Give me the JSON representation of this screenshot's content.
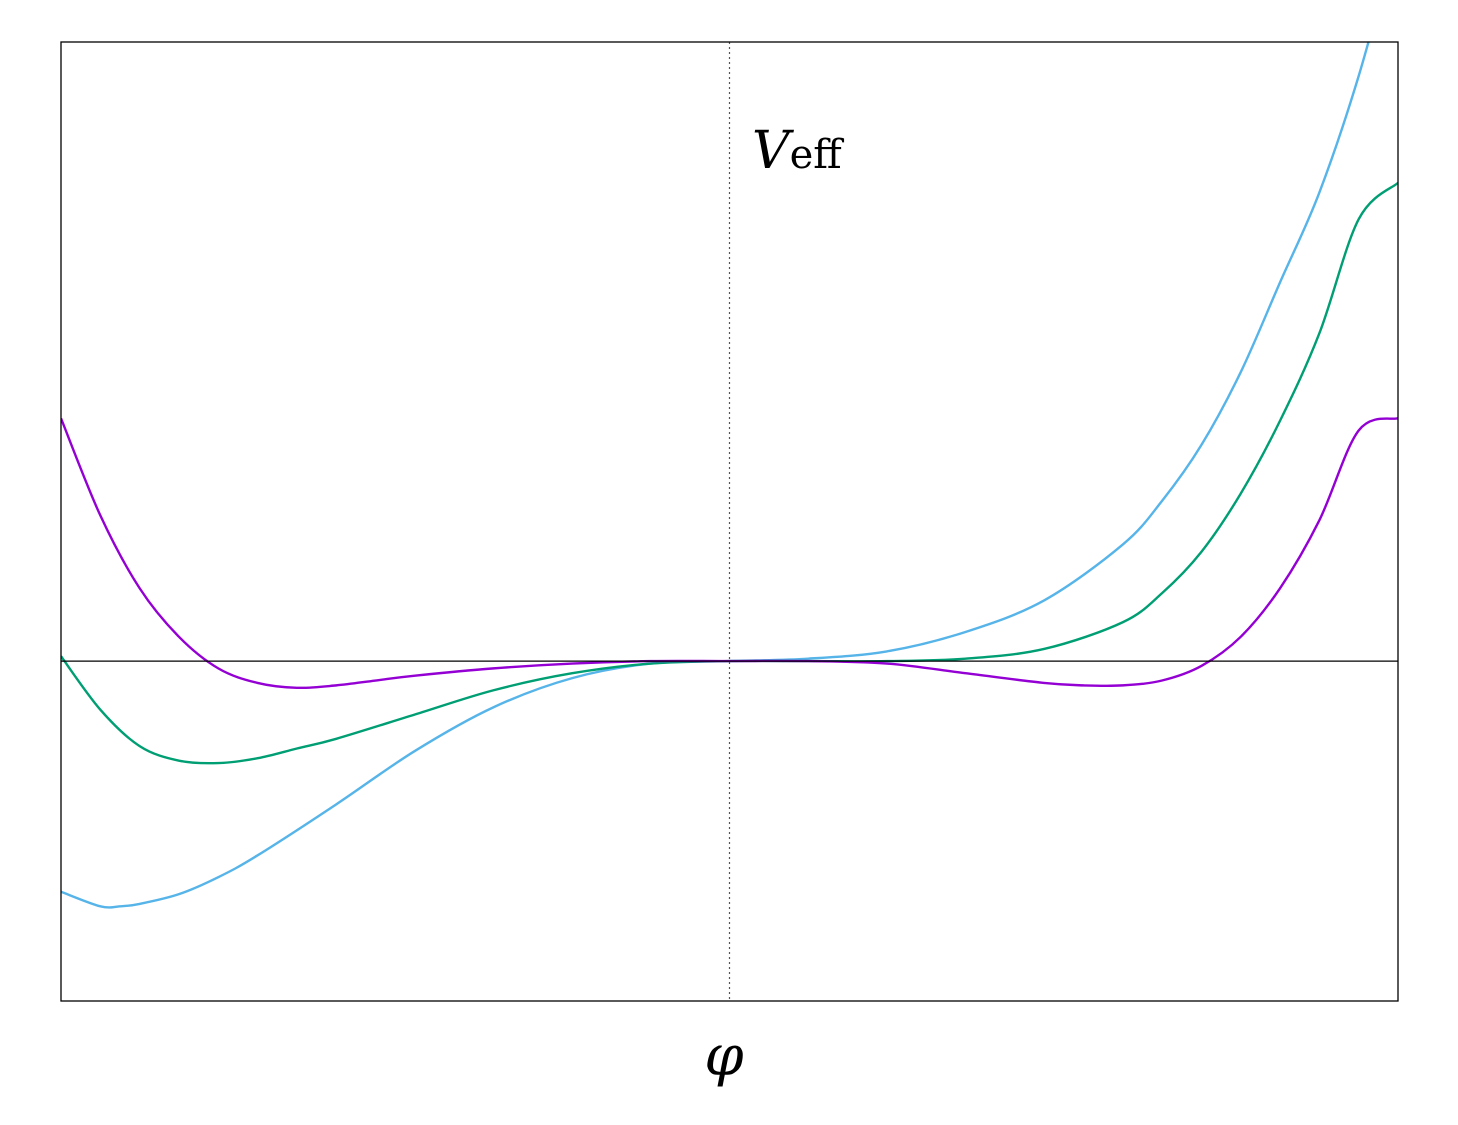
{
  "chart_data": {
    "type": "line",
    "xlabel": "φ",
    "ylabel": {
      "main": "V",
      "subscript": "eff"
    },
    "xlim": [
      -1.7,
      1.7
    ],
    "ylim": [
      -1.4,
      2.55
    ],
    "grid": false,
    "ticks": false,
    "zero_lines": {
      "horizontal": "solid",
      "vertical": "dotted"
    },
    "series": [
      {
        "color": "#56B4E9",
        "x": [
          -1.7,
          -1.6,
          -1.55,
          -1.5,
          -1.4,
          -1.3,
          -1.2,
          -1.0,
          -0.8,
          -0.6,
          -0.4,
          -0.2,
          0,
          0.2,
          0.4,
          0.6,
          0.8,
          1.0,
          1.1,
          1.2,
          1.3,
          1.4,
          1.5,
          1.6,
          1.7
        ],
        "y": [
          -0.95,
          -1.01,
          -1.01,
          -1.0,
          -0.96,
          -0.89,
          -0.8,
          -0.59,
          -0.37,
          -0.19,
          -0.07,
          -0.01,
          0.0,
          0.01,
          0.04,
          0.12,
          0.25,
          0.48,
          0.66,
          0.89,
          1.19,
          1.56,
          1.93,
          2.41,
          3.0
        ]
      },
      {
        "color": "#009E73",
        "x": [
          -1.7,
          -1.6,
          -1.5,
          -1.4,
          -1.3,
          -1.2,
          -1.1,
          -1.0,
          -0.8,
          -0.6,
          -0.4,
          -0.2,
          0,
          0.2,
          0.4,
          0.6,
          0.8,
          1.0,
          1.1,
          1.2,
          1.3,
          1.4,
          1.5,
          1.6,
          1.7
        ],
        "y": [
          0.02,
          -0.2,
          -0.35,
          -0.41,
          -0.42,
          -0.4,
          -0.36,
          -0.32,
          -0.22,
          -0.12,
          -0.05,
          -0.01,
          0.0,
          0.0,
          0.0,
          0.01,
          0.05,
          0.16,
          0.28,
          0.45,
          0.69,
          0.99,
          1.35,
          1.82,
          1.97
        ]
      },
      {
        "color": "#9400D3",
        "x": [
          -1.7,
          -1.6,
          -1.5,
          -1.4,
          -1.3,
          -1.2,
          -1.1,
          -1.0,
          -0.9,
          -0.8,
          -0.6,
          -0.4,
          -0.2,
          0,
          0.2,
          0.4,
          0.6,
          0.8,
          0.9,
          1.0,
          1.1,
          1.2,
          1.3,
          1.4,
          1.5,
          1.6,
          1.7
        ],
        "y": [
          1.0,
          0.6,
          0.3,
          0.1,
          -0.03,
          -0.09,
          -0.11,
          -0.1,
          -0.08,
          -0.06,
          -0.03,
          -0.01,
          0.0,
          0.0,
          0.0,
          -0.01,
          -0.05,
          -0.09,
          -0.1,
          -0.1,
          -0.08,
          -0.02,
          0.1,
          0.3,
          0.58,
          0.95,
          1.0
        ]
      }
    ]
  }
}
